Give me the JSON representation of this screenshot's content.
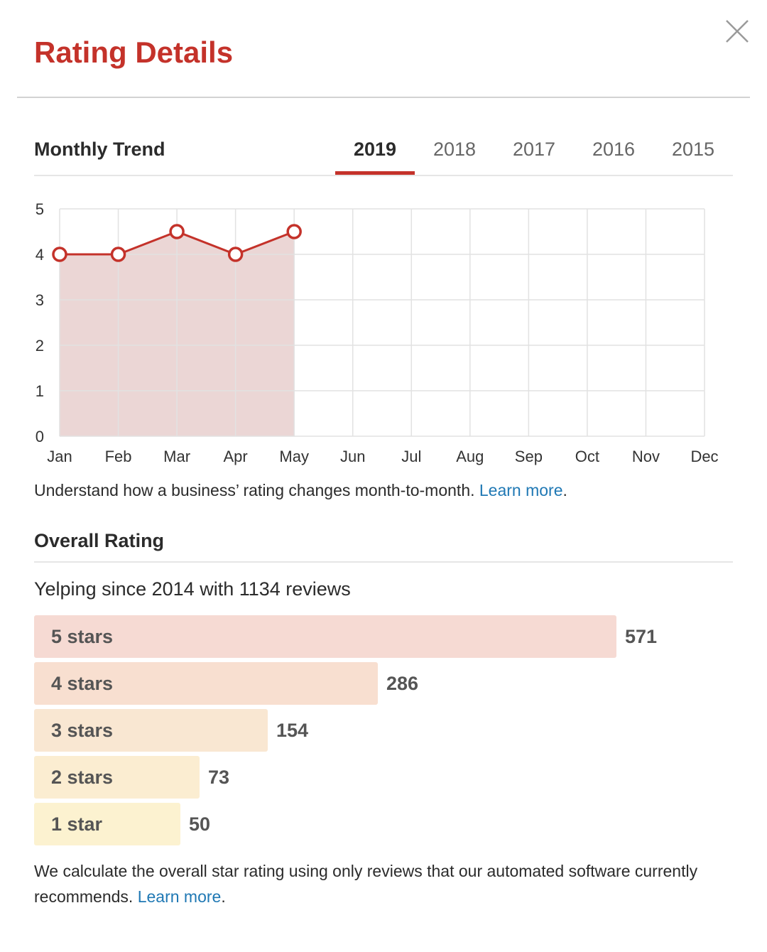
{
  "header": {
    "title": "Rating Details",
    "close_icon": "close-icon"
  },
  "trend": {
    "title": "Monthly Trend",
    "tabs": [
      "2019",
      "2018",
      "2017",
      "2016",
      "2015"
    ],
    "active_tab": "2019",
    "description": "Understand how a business’ rating changes month-to-month.",
    "link_text": "Learn more",
    "suffix": "."
  },
  "chart_data": {
    "type": "area",
    "categories": [
      "Jan",
      "Feb",
      "Mar",
      "Apr",
      "May",
      "Jun",
      "Jul",
      "Aug",
      "Sep",
      "Oct",
      "Nov",
      "Dec"
    ],
    "series": [
      {
        "values": [
          4,
          4,
          4.5,
          4,
          4.5,
          null,
          null,
          null,
          null,
          null,
          null,
          null
        ]
      }
    ],
    "yticks": [
      "0",
      "1",
      "2",
      "3",
      "4",
      "5"
    ],
    "ylim": [
      0,
      5
    ],
    "grid": true,
    "colors": {
      "line": "#c4322a",
      "fill": "#ebd6d5",
      "grid": "#e2e2e2"
    }
  },
  "overall": {
    "title": "Overall Rating",
    "since_text": "Yelping since 2014 with 1134 reviews",
    "bars": [
      {
        "label": "5 stars",
        "count": 571,
        "color": "#f6dad3"
      },
      {
        "label": "4 stars",
        "count": 286,
        "color": "#f8dfd0"
      },
      {
        "label": "3 stars",
        "count": 154,
        "color": "#f9e7d2"
      },
      {
        "label": "2 stars",
        "count": 73,
        "color": "#fbedd1"
      },
      {
        "label": "1 star",
        "count": 50,
        "color": "#fcf2d0"
      }
    ],
    "footer_text": "We calculate the overall star rating using only reviews that our automated software currently recommends.",
    "link_text": "Learn more",
    "suffix": "."
  }
}
